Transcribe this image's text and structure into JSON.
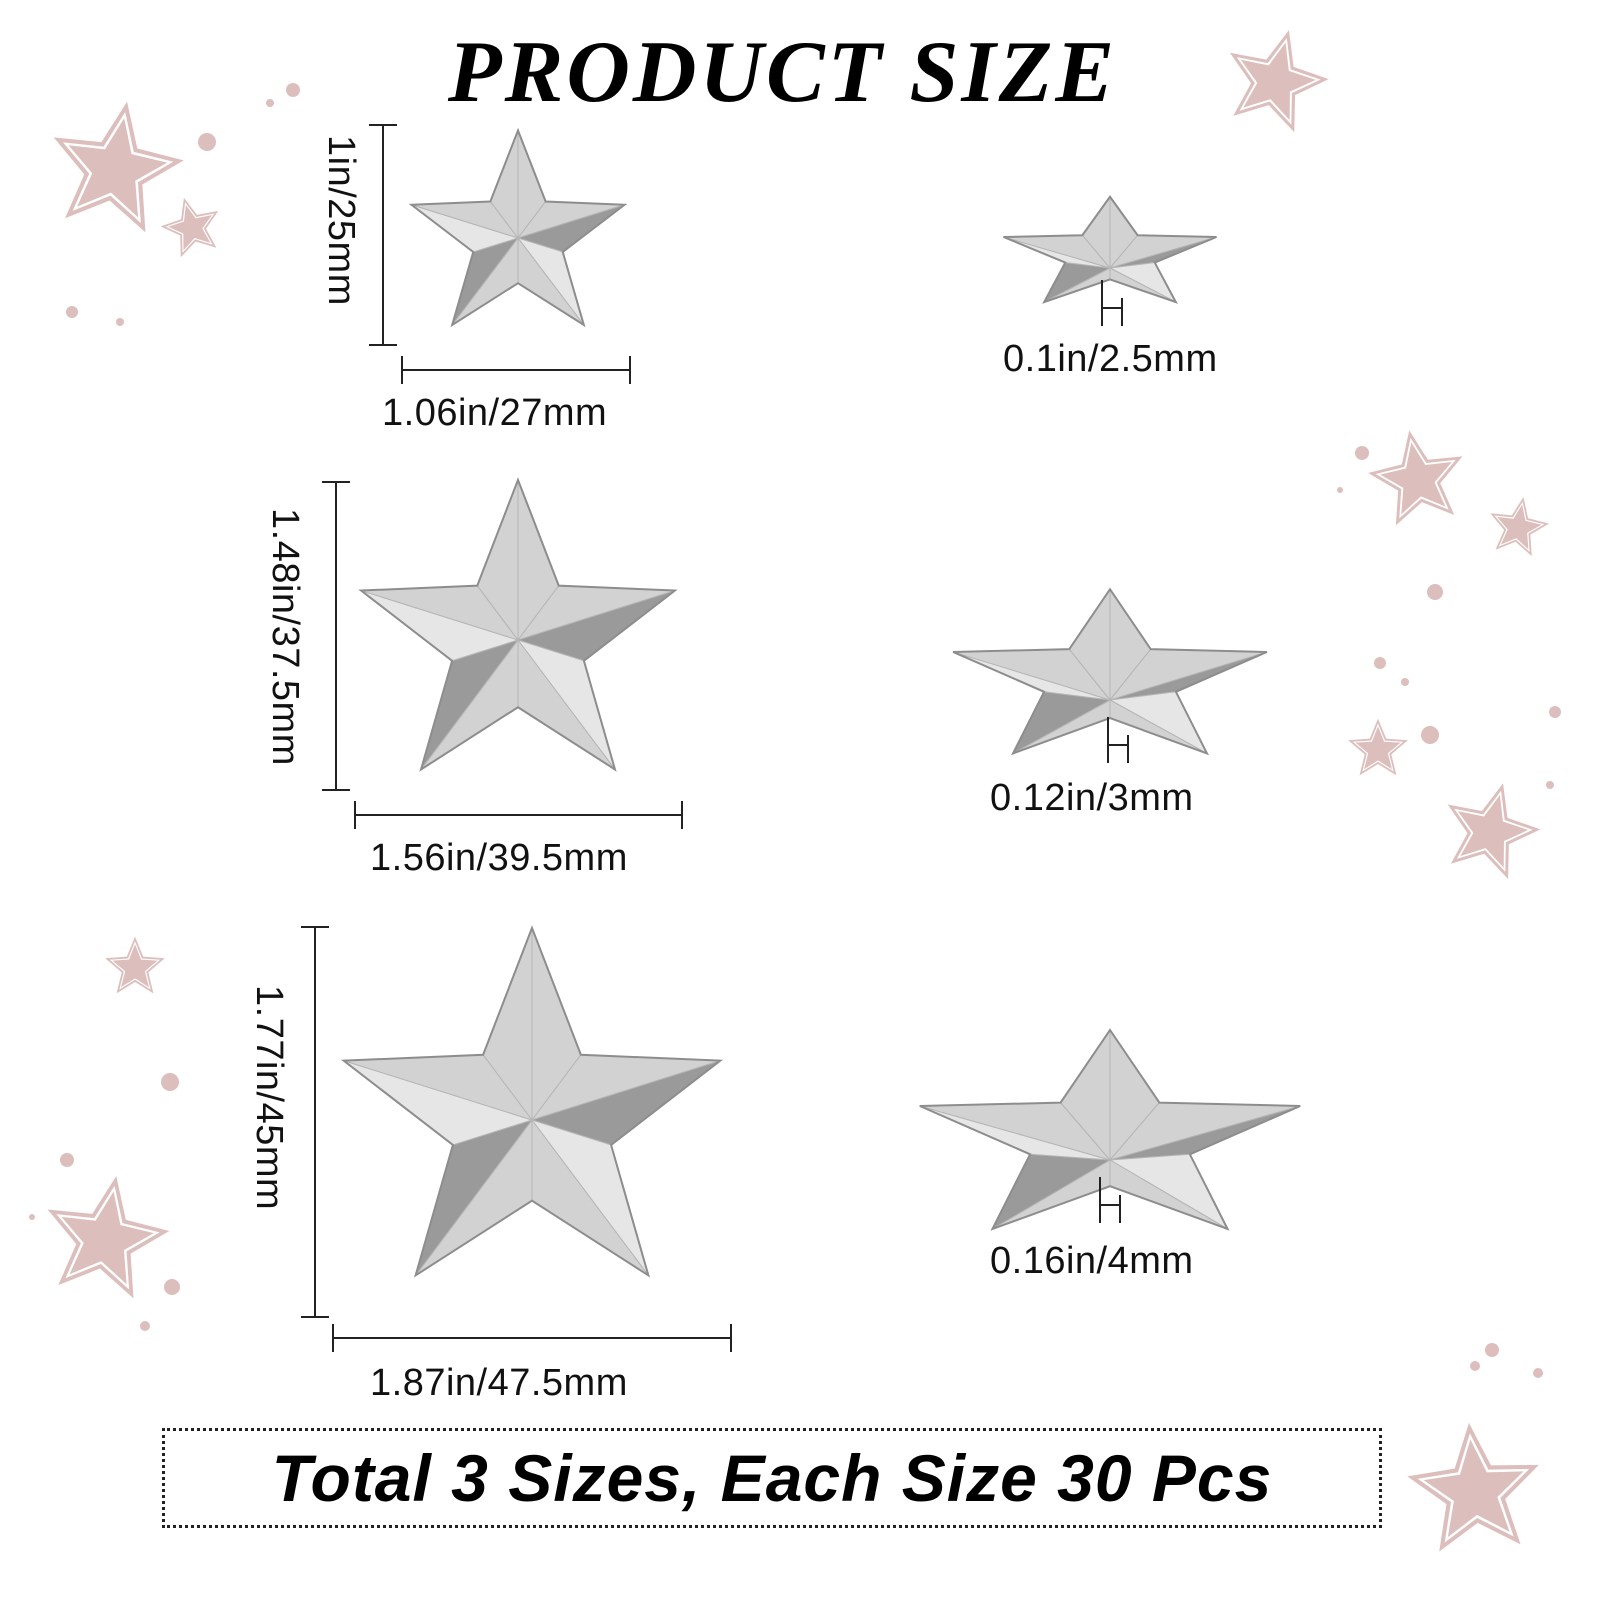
{
  "title": "PRODUCT SIZE",
  "colors": {
    "decor_star": "#dcbfbd",
    "metal_light": "#e6e6e6",
    "metal_dark": "#9a9a9a",
    "text": "#000000"
  },
  "rows": [
    {
      "height": "1in/25mm",
      "width": "1.06in/27mm",
      "thickness": "0.1in/2.5mm"
    },
    {
      "height": "1.48in/37.5mm",
      "width": "1.56in/39.5mm",
      "thickness": "0.12in/3mm"
    },
    {
      "height": "1.77in/45mm",
      "width": "1.87in/47.5mm",
      "thickness": "0.16in/4mm"
    }
  ],
  "footer": "Total 3 Sizes, Each Size 30 Pcs"
}
